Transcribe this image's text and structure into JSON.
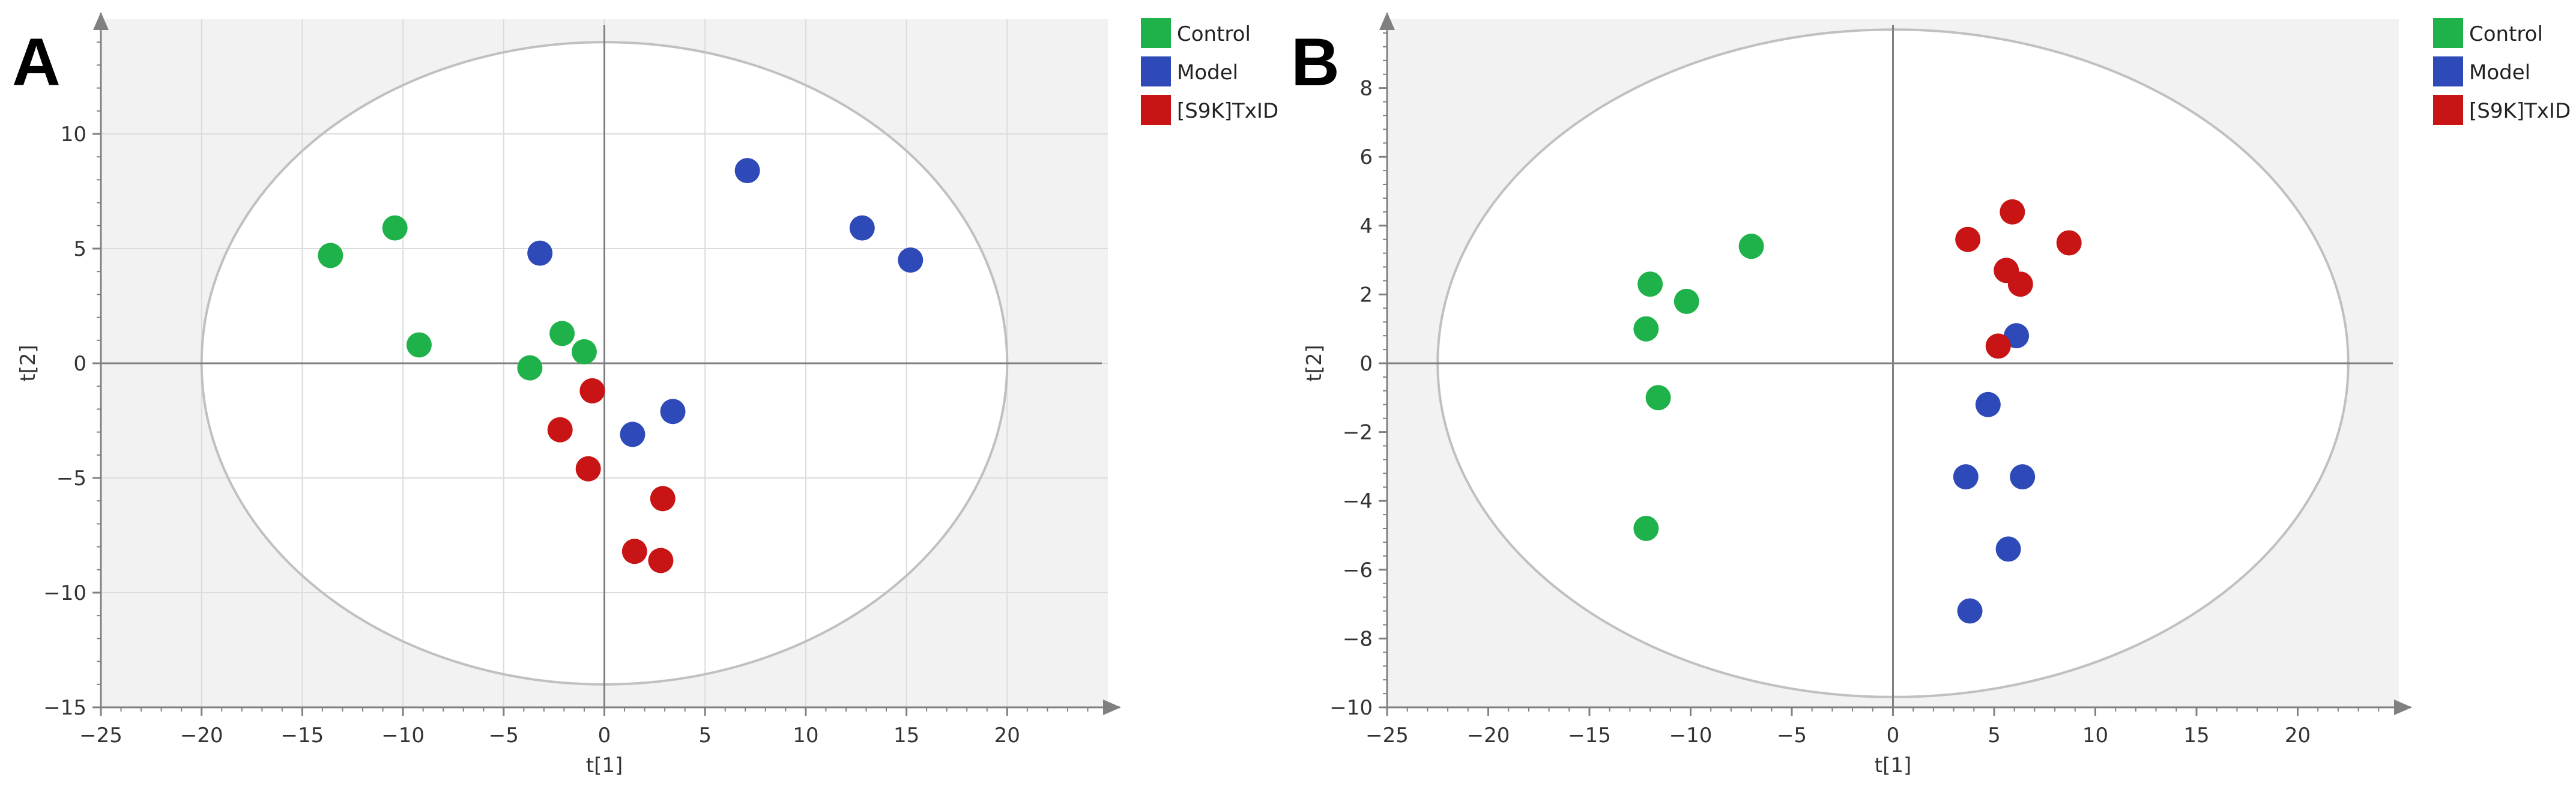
{
  "figure": {
    "panels": [
      "A",
      "B"
    ]
  },
  "colors": {
    "Control": "#1fb24a",
    "Model": "#2e49b8",
    "[S9K]TxID": "#c81414",
    "plot_background": "#f2f2f2",
    "ellipse_fill": "#ffffff",
    "ellipse_stroke": "#c0c0c0",
    "grid": "#dcdcdc",
    "axis": "#808080"
  },
  "chart_data": [
    {
      "type": "scatter",
      "panel_label": "A",
      "title": "",
      "xlabel": "t[1]",
      "ylabel": "t[2]",
      "xlim": [
        -25,
        25
      ],
      "ylim": [
        -15,
        15
      ],
      "xticks": [
        -25,
        -20,
        -15,
        -10,
        -5,
        0,
        5,
        10,
        15,
        20
      ],
      "yticks": [
        -15,
        -10,
        -5,
        0,
        5,
        10
      ],
      "xtick_labels": [
        "−25",
        "−20",
        "−15",
        "−10",
        "−5",
        "0",
        "5",
        "10",
        "15",
        "20"
      ],
      "ytick_labels": [
        "−15",
        "−10",
        "−5",
        "0",
        "5",
        "10"
      ],
      "ellipse": {
        "center": [
          0,
          0
        ],
        "rx": 20,
        "ry": 14
      },
      "legend": [
        "Control",
        "Model",
        "[S9K]TxID"
      ],
      "legend_position": "top-right",
      "grid": true,
      "series": [
        {
          "name": "Control",
          "points": [
            [
              -13.6,
              4.7
            ],
            [
              -10.4,
              5.9
            ],
            [
              -9.2,
              0.8
            ],
            [
              -2.1,
              1.3
            ],
            [
              -1.0,
              0.5
            ],
            [
              -3.7,
              -0.2
            ]
          ]
        },
        {
          "name": "Model",
          "points": [
            [
              -3.2,
              4.8
            ],
            [
              7.1,
              8.4
            ],
            [
              12.8,
              5.9
            ],
            [
              15.2,
              4.5
            ],
            [
              1.4,
              -3.1
            ],
            [
              3.4,
              -2.1
            ]
          ]
        },
        {
          "name": "[S9K]TxID",
          "points": [
            [
              -0.6,
              -1.2
            ],
            [
              -2.2,
              -2.9
            ],
            [
              -0.8,
              -4.6
            ],
            [
              2.9,
              -5.9
            ],
            [
              1.5,
              -8.2
            ],
            [
              2.8,
              -8.6
            ]
          ]
        }
      ]
    },
    {
      "type": "scatter",
      "panel_label": "B",
      "title": "",
      "xlabel": "t[1]",
      "ylabel": "t[2]",
      "xlim": [
        -25,
        25
      ],
      "ylim": [
        -10,
        10
      ],
      "xticks": [
        -25,
        -20,
        -15,
        -10,
        -5,
        0,
        5,
        10,
        15,
        20
      ],
      "yticks": [
        -10,
        -8,
        -6,
        -4,
        -2,
        0,
        2,
        4,
        6,
        8
      ],
      "xtick_labels": [
        "−25",
        "−20",
        "−15",
        "−10",
        "−5",
        "0",
        "5",
        "10",
        "15",
        "20"
      ],
      "ytick_labels": [
        "−10",
        "−8",
        "−6",
        "−4",
        "−2",
        "0",
        "2",
        "4",
        "6",
        "8"
      ],
      "ellipse": {
        "center": [
          0,
          0
        ],
        "rx": 22.5,
        "ry": 9.7
      },
      "legend": [
        "Control",
        "Model",
        "[S9K]TxID"
      ],
      "legend_position": "top-right",
      "grid": false,
      "series": [
        {
          "name": "Control",
          "points": [
            [
              -7.0,
              3.4
            ],
            [
              -12.0,
              2.3
            ],
            [
              -10.2,
              1.8
            ],
            [
              -12.2,
              1.0
            ],
            [
              -11.6,
              -1.0
            ],
            [
              -12.2,
              -4.8
            ]
          ]
        },
        {
          "name": "Model",
          "points": [
            [
              6.1,
              0.8
            ],
            [
              4.7,
              -1.2
            ],
            [
              3.6,
              -3.3
            ],
            [
              6.4,
              -3.3
            ],
            [
              5.7,
              -5.4
            ],
            [
              3.8,
              -7.2
            ]
          ]
        },
        {
          "name": "[S9K]TxID",
          "points": [
            [
              3.7,
              3.6
            ],
            [
              5.9,
              4.4
            ],
            [
              8.7,
              3.5
            ],
            [
              5.6,
              2.7
            ],
            [
              6.3,
              2.3
            ],
            [
              5.2,
              0.5
            ]
          ]
        }
      ]
    }
  ]
}
